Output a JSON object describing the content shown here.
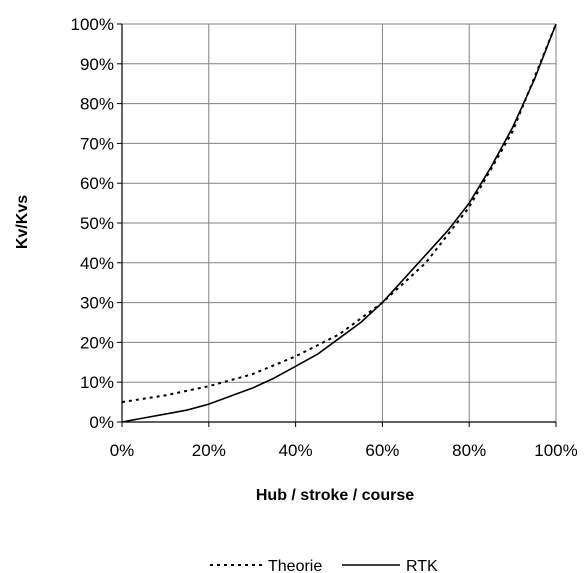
{
  "chart_data": {
    "type": "line",
    "xlabel": "Hub / stroke / course",
    "ylabel": "Kv/Kvs",
    "xlim": [
      0,
      100
    ],
    "ylim": [
      0,
      100
    ],
    "x_ticks": [
      "0%",
      "20%",
      "40%",
      "60%",
      "80%",
      "100%"
    ],
    "y_ticks": [
      "0%",
      "10%",
      "20%",
      "30%",
      "40%",
      "50%",
      "60%",
      "70%",
      "80%",
      "90%",
      "100%"
    ],
    "grid": true,
    "legend_position": "bottom",
    "series": [
      {
        "name": "Theorie",
        "style": "dotted",
        "color": "#000000",
        "x": [
          0,
          10,
          20,
          30,
          40,
          50,
          60,
          70,
          80,
          90,
          100
        ],
        "y": [
          5,
          6.7,
          9,
          12,
          16.5,
          22,
          30,
          40,
          54,
          73,
          100
        ]
      },
      {
        "name": "RTK",
        "style": "solid",
        "color": "#000000",
        "x": [
          0,
          5,
          10,
          15,
          20,
          25,
          30,
          35,
          40,
          45,
          50,
          55,
          60,
          65,
          70,
          75,
          80,
          85,
          90,
          95,
          100
        ],
        "y": [
          0,
          1,
          2,
          3,
          4.5,
          6.5,
          8.5,
          11,
          14,
          17,
          21,
          25,
          30,
          36,
          42,
          48,
          55,
          64,
          74,
          86,
          100
        ]
      }
    ]
  }
}
